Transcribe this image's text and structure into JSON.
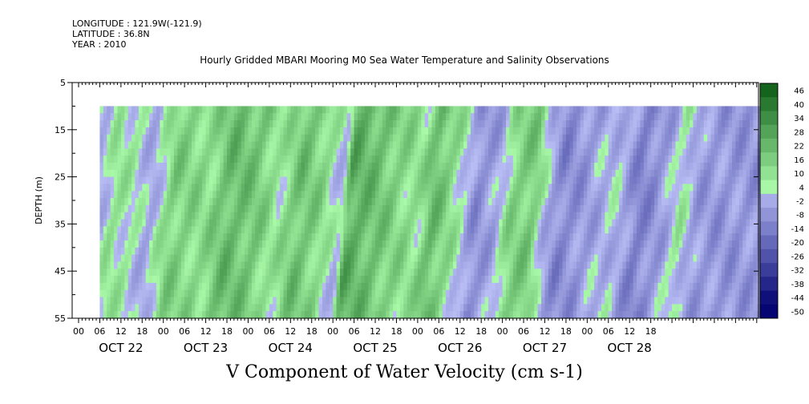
{
  "header": {
    "longitude": "LONGITUDE : 121.9W(-121.9)",
    "latitude": "LATITUDE : 36.8N",
    "year": "YEAR : 2010"
  },
  "chart_data": {
    "type": "heatmap",
    "title": "Hourly Gridded MBARI Mooring M0 Sea Water Temperature and Salinity Observations",
    "caption": "V Component of Water Velocity (cm s-1)",
    "ylabel": "DEPTH (m)",
    "ylim": [
      55,
      5
    ],
    "y_ticks": [
      5,
      15,
      25,
      35,
      45,
      55
    ],
    "data_depth_range": [
      10,
      55
    ],
    "x_hour_ticks": [
      "00",
      "06",
      "12",
      "18",
      "00",
      "06",
      "12",
      "18",
      "00",
      "06",
      "12",
      "18",
      "00",
      "06",
      "12",
      "18",
      "00",
      "06",
      "12",
      "18",
      "00",
      "06",
      "12",
      "18",
      "00",
      "06",
      "12",
      "18"
    ],
    "x_day_labels": [
      "OCT 22",
      "OCT 23",
      "OCT 24",
      "OCT 25",
      "OCT 26",
      "OCT 27",
      "OCT 28"
    ],
    "data_time_start": "OCT 22 06:00",
    "colorbar": {
      "levels": [
        "46",
        "40",
        "34",
        "28",
        "22",
        "16",
        "10",
        "4",
        "-2",
        "-8",
        "-14",
        "-20",
        "-26",
        "-32",
        "-38",
        "-44",
        "-50"
      ]
    },
    "pattern": [
      {
        "hour": 6,
        "value": -4
      },
      {
        "hour": 9,
        "value": 6
      },
      {
        "hour": 15,
        "value": 2
      },
      {
        "hour": 20,
        "value": -6
      },
      {
        "hour": 26,
        "value": 12
      },
      {
        "hour": 36,
        "value": 8
      },
      {
        "hour": 42,
        "value": 18
      },
      {
        "hour": 50,
        "value": 14
      },
      {
        "hour": 56,
        "value": 4
      },
      {
        "hour": 62,
        "value": 16
      },
      {
        "hour": 68,
        "value": 10
      },
      {
        "hour": 74,
        "value": -4
      },
      {
        "hour": 76,
        "value": 22
      },
      {
        "hour": 84,
        "value": 16
      },
      {
        "hour": 90,
        "value": 10
      },
      {
        "hour": 96,
        "value": 6
      },
      {
        "hour": 100,
        "value": 18
      },
      {
        "hour": 106,
        "value": 6
      },
      {
        "hour": 112,
        "value": -12
      },
      {
        "hour": 118,
        "value": -6
      },
      {
        "hour": 122,
        "value": 10
      },
      {
        "hour": 128,
        "value": 14
      },
      {
        "hour": 132,
        "value": -4
      },
      {
        "hour": 136,
        "value": -14
      },
      {
        "hour": 142,
        "value": -10
      },
      {
        "hour": 146,
        "value": -6
      },
      {
        "hour": 152,
        "value": -2
      },
      {
        "hour": 158,
        "value": -16
      },
      {
        "hour": 162,
        "value": -12
      },
      {
        "hour": 166,
        "value": -6
      },
      {
        "hour": 170,
        "value": 4
      },
      {
        "hour": 174,
        "value": -8
      },
      {
        "hour": 180,
        "value": -10
      }
    ]
  }
}
